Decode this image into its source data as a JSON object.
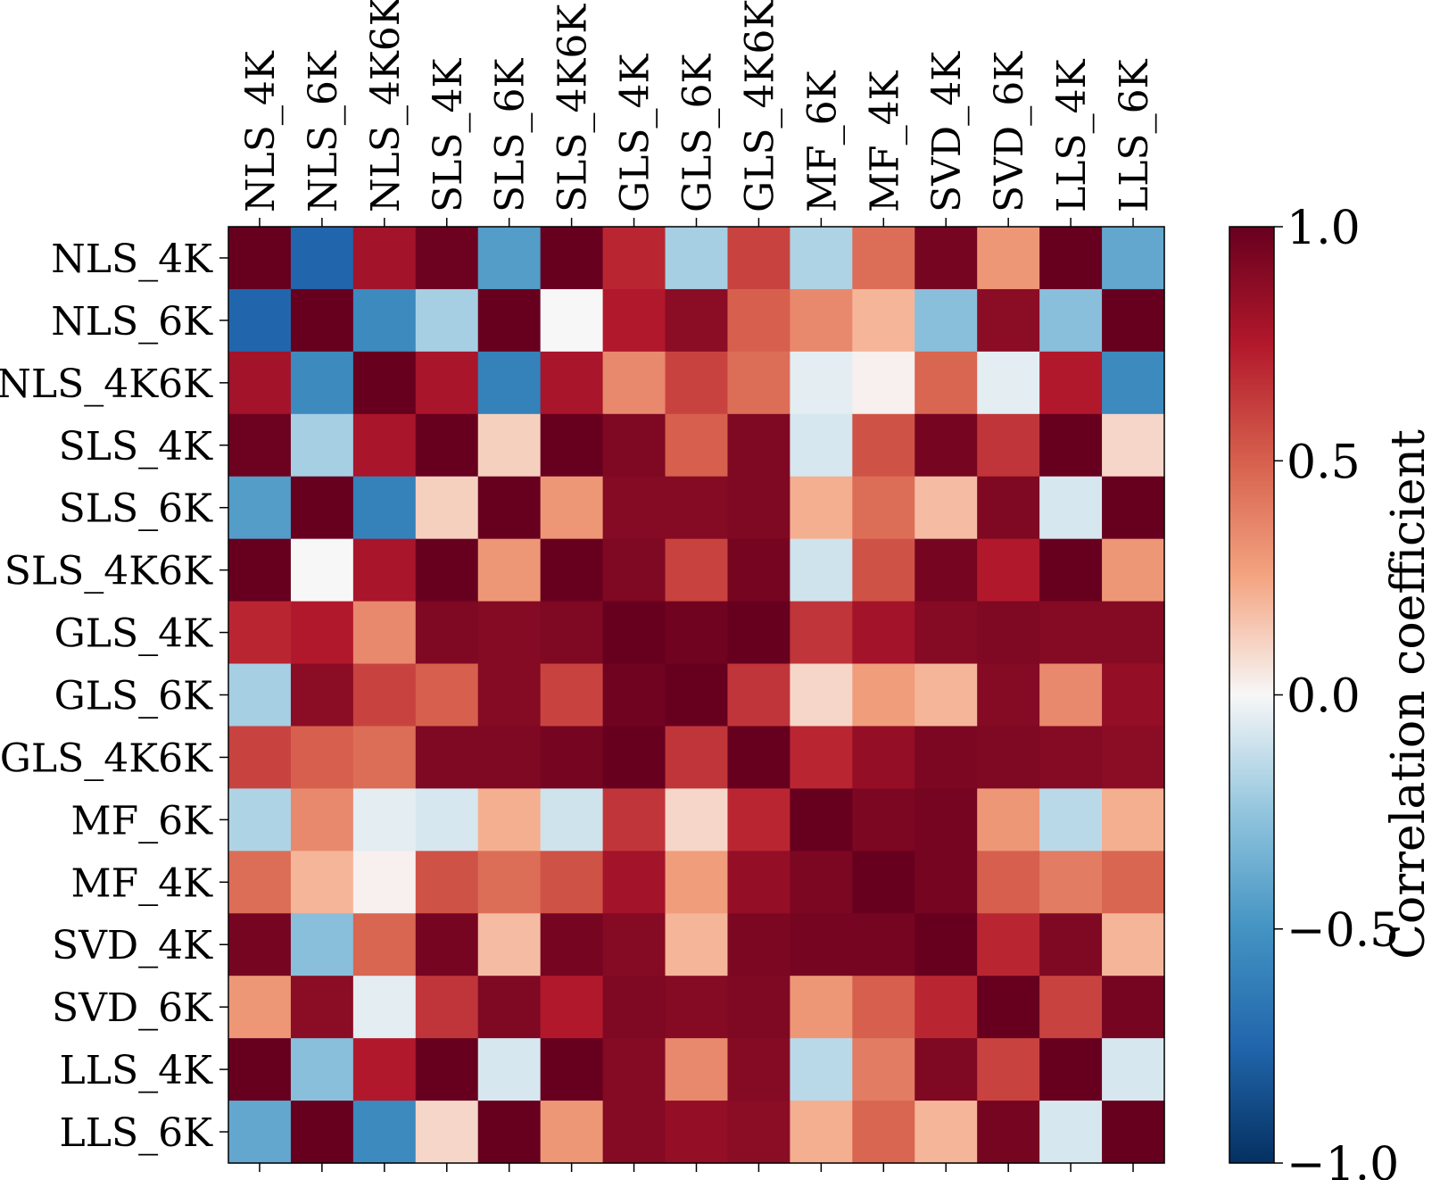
{
  "chart_data": {
    "type": "heatmap",
    "labels": [
      "NLS_4K",
      "NLS_6K",
      "NLS_4K6K",
      "SLS_4K",
      "SLS_6K",
      "SLS_4K6K",
      "GLS_4K",
      "GLS_6K",
      "GLS_4K6K",
      "MF_6K",
      "MF_4K",
      "SVD_4K",
      "SVD_6K",
      "LLS_4K",
      "LLS_6K"
    ],
    "x_label_position": "top",
    "values": [
      [
        1.0,
        -0.75,
        0.8,
        0.98,
        -0.45,
        1.0,
        0.7,
        -0.2,
        0.6,
        -0.18,
        0.45,
        0.95,
        0.3,
        1.0,
        -0.4
      ],
      [
        -0.75,
        1.0,
        -0.55,
        -0.2,
        1.0,
        0.0,
        0.75,
        0.88,
        0.5,
        0.35,
        0.2,
        -0.28,
        0.88,
        -0.28,
        1.0
      ],
      [
        0.8,
        -0.55,
        1.0,
        0.78,
        -0.6,
        0.78,
        0.35,
        0.6,
        0.45,
        -0.05,
        0.02,
        0.48,
        -0.05,
        0.75,
        -0.55
      ],
      [
        0.98,
        -0.2,
        0.78,
        1.0,
        0.12,
        1.0,
        0.92,
        0.5,
        0.92,
        -0.08,
        0.55,
        0.95,
        0.65,
        1.0,
        0.1
      ],
      [
        -0.45,
        1.0,
        -0.6,
        0.12,
        1.0,
        0.3,
        0.9,
        0.9,
        0.92,
        0.22,
        0.45,
        0.18,
        0.92,
        -0.08,
        1.0
      ],
      [
        1.0,
        0.0,
        0.78,
        1.0,
        0.3,
        1.0,
        0.92,
        0.6,
        0.95,
        -0.1,
        0.55,
        0.95,
        0.75,
        1.0,
        0.3
      ],
      [
        0.7,
        0.75,
        0.35,
        0.92,
        0.9,
        0.92,
        1.0,
        0.97,
        1.0,
        0.65,
        0.8,
        0.9,
        0.92,
        0.9,
        0.9
      ],
      [
        -0.2,
        0.88,
        0.6,
        0.5,
        0.9,
        0.6,
        0.97,
        1.0,
        0.65,
        0.1,
        0.28,
        0.2,
        0.9,
        0.35,
        0.85
      ],
      [
        0.6,
        0.5,
        0.45,
        0.92,
        0.92,
        0.95,
        1.0,
        0.65,
        1.0,
        0.7,
        0.85,
        0.93,
        0.92,
        0.9,
        0.88
      ],
      [
        -0.18,
        0.35,
        -0.05,
        -0.08,
        0.22,
        -0.1,
        0.65,
        0.1,
        0.7,
        1.0,
        0.93,
        0.95,
        0.3,
        -0.15,
        0.22
      ],
      [
        0.45,
        0.2,
        0.02,
        0.55,
        0.45,
        0.55,
        0.8,
        0.28,
        0.85,
        0.93,
        1.0,
        0.95,
        0.5,
        0.4,
        0.48
      ],
      [
        0.95,
        -0.28,
        0.48,
        0.95,
        0.18,
        0.95,
        0.9,
        0.2,
        0.93,
        0.95,
        0.95,
        1.0,
        0.7,
        0.92,
        0.2
      ],
      [
        0.3,
        0.88,
        -0.05,
        0.65,
        0.92,
        0.75,
        0.92,
        0.9,
        0.92,
        0.3,
        0.5,
        0.7,
        1.0,
        0.6,
        0.95
      ],
      [
        1.0,
        -0.28,
        0.75,
        1.0,
        -0.08,
        1.0,
        0.9,
        0.35,
        0.9,
        -0.15,
        0.4,
        0.92,
        0.6,
        1.0,
        -0.08
      ],
      [
        -0.4,
        1.0,
        -0.55,
        0.1,
        1.0,
        0.3,
        0.9,
        0.85,
        0.88,
        0.22,
        0.48,
        0.2,
        0.95,
        -0.08,
        1.0
      ]
    ],
    "colormap": "RdBu_r",
    "vmin": -1.0,
    "vmax": 1.0,
    "colorbar": {
      "label": "Correlation coefficient",
      "ticks": [
        1.0,
        0.5,
        0.0,
        -0.5,
        -1.0
      ],
      "tick_labels": [
        "1.0",
        "0.5",
        "0.0",
        "−0.5",
        "−1.0"
      ]
    }
  }
}
